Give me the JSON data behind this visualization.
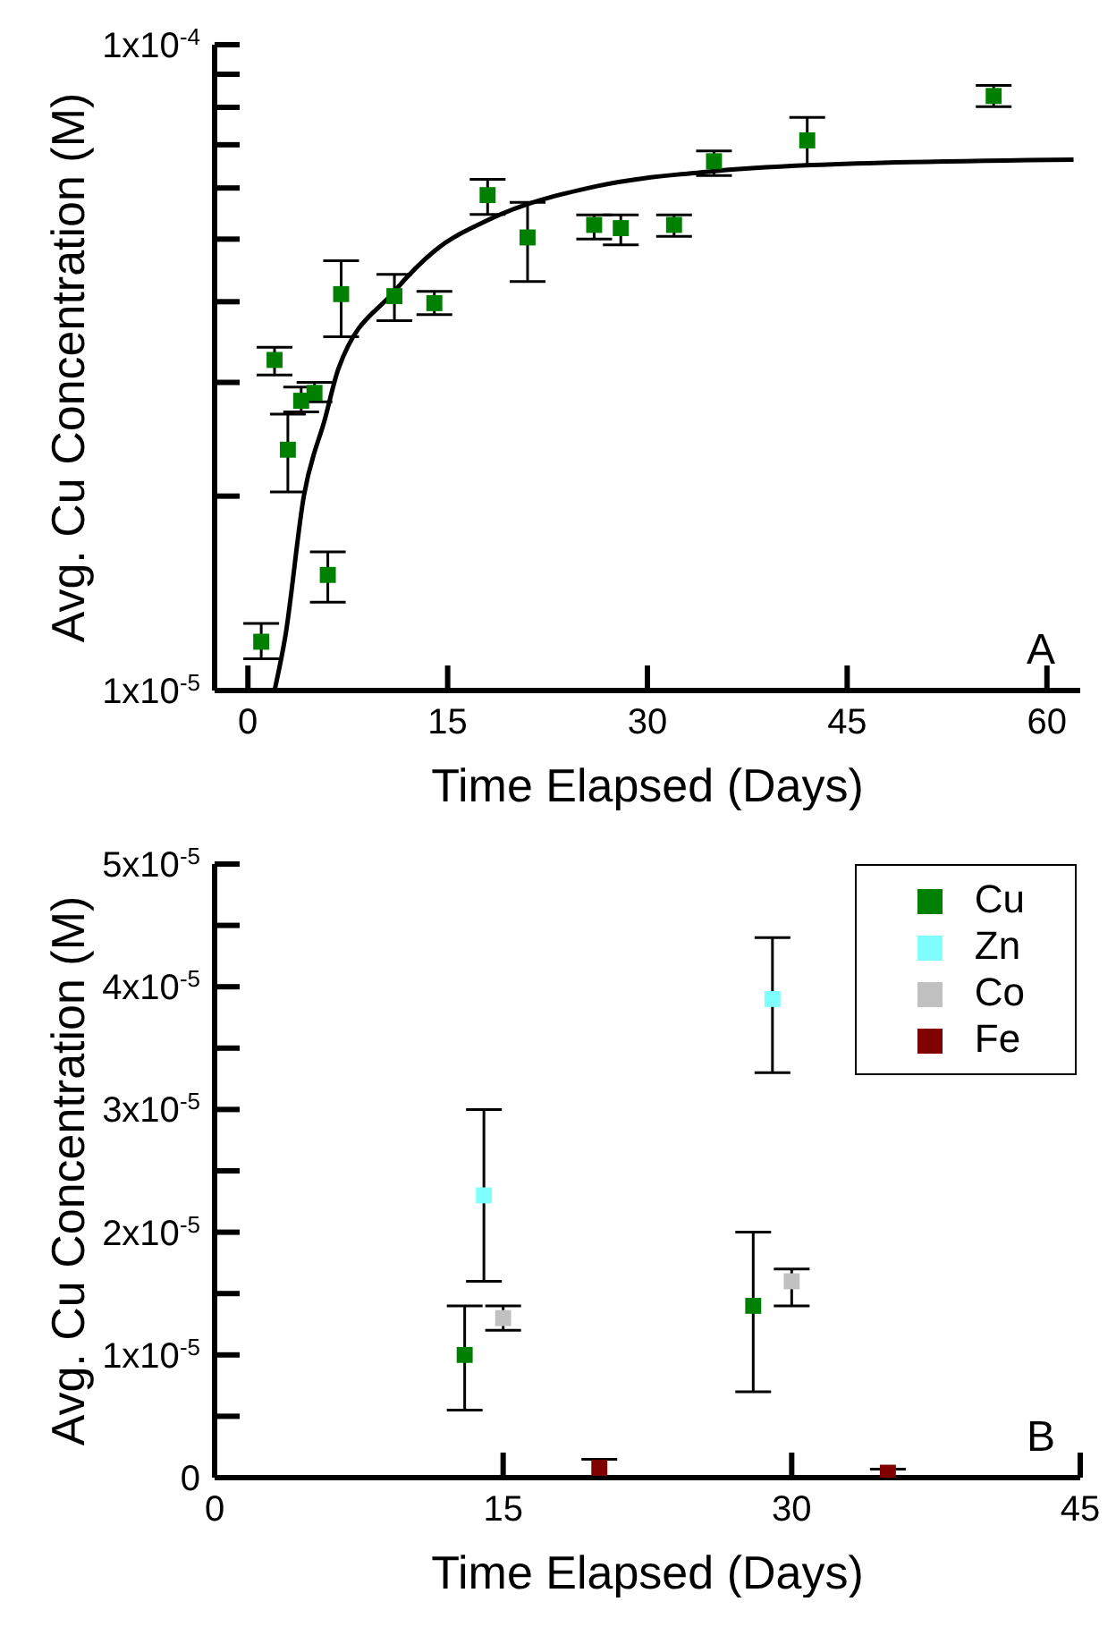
{
  "chart_data": [
    {
      "type": "scatter",
      "xlabel": "Time Elapsed (Days)",
      "ylabel": "Avg. Cu Concentration (M)",
      "log": "y",
      "xlim": [
        -2.5,
        62.5
      ],
      "xticks": [
        0,
        15,
        30,
        45,
        60
      ],
      "ylim": [
        1e-05,
        0.0001
      ],
      "yticks": [
        {
          "value": 1e-05,
          "label": "1x10$^{-5}$"
        },
        {
          "value": 2e-05,
          "label": null
        },
        {
          "value": 3e-05,
          "label": null
        },
        {
          "value": 4e-05,
          "label": null
        },
        {
          "value": 5e-05,
          "label": null
        },
        {
          "value": 6e-05,
          "label": null
        },
        {
          "value": 7e-05,
          "label": null
        },
        {
          "value": 8e-05,
          "label": null
        },
        {
          "value": 9e-05,
          "label": null
        },
        {
          "value": 0.0001,
          "label": "1x10$^{-4}$"
        }
      ],
      "legend": false,
      "marker": "square",
      "annotations": [
        "A"
      ],
      "series": [
        {
          "color": "#008000",
          "x": [
            1,
            2,
            3,
            4,
            5,
            6,
            7,
            11,
            14,
            18,
            21,
            26,
            28,
            32,
            35,
            42,
            56
          ],
          "values": [
            1.19e-05,
            3.25e-05,
            2.36e-05,
            2.81e-05,
            2.89e-05,
            1.51e-05,
            4.11e-05,
            4.08e-05,
            3.98e-05,
            5.85e-05,
            5.03e-05,
            5.26e-05,
            5.2e-05,
            5.26e-05,
            6.6e-05,
            7.11e-05,
            8.33e-05
          ],
          "errors": [
            [
              1.12e-05,
              1.27e-05
            ],
            [
              3.08e-05,
              3.4e-05
            ],
            [
              2.03e-05,
              2.68e-05
            ],
            [
              2.7e-05,
              2.95e-05
            ],
            [
              2.8e-05,
              3e-05
            ],
            [
              1.37e-05,
              1.64e-05
            ],
            [
              3.53e-05,
              4.63e-05
            ],
            [
              3.74e-05,
              4.41e-05
            ],
            [
              3.82e-05,
              4.15e-05
            ],
            [
              5.46e-05,
              6.19e-05
            ],
            [
              4.3e-05,
              5.7e-05
            ],
            [
              5e-05,
              5.45e-05
            ],
            [
              4.9e-05,
              5.45e-05
            ],
            [
              5.05e-05,
              5.45e-05
            ],
            [
              6.27e-05,
              6.85e-05
            ],
            [
              6.51e-05,
              7.72e-05
            ],
            [
              8.02e-05,
              8.65e-05
            ]
          ]
        },
        {
          "type": "line",
          "color": "#000000",
          "marker": "none",
          "line_style": "solid",
          "x": [
            2,
            2.8,
            4.2,
            5.8,
            6.8,
            10.9,
            14.1,
            18.1,
            26.2,
            34.2,
            42.3,
            62
          ],
          "values": [
            1e-05,
            1.21e-05,
            2e-05,
            2.64e-05,
            3.15e-05,
            4.13e-05,
            4.81e-05,
            5.36e-05,
            6.04e-05,
            6.35e-05,
            6.51e-05,
            6.64e-05
          ]
        }
      ]
    },
    {
      "type": "scatter",
      "xlabel": "Time Elapsed (Days)",
      "ylabel": "Avg. Cu Concentration (M)",
      "xlim": [
        0,
        45
      ],
      "xticks": [
        0,
        15,
        30,
        45
      ],
      "ylim": [
        0,
        5e-05
      ],
      "yticks": [
        0,
        {
          "value": 5e-06,
          "label": null
        },
        {
          "value": 1e-05,
          "label": "1x10$^{-5}$"
        },
        {
          "value": 1.5e-05,
          "label": null
        },
        {
          "value": 2e-05,
          "label": "2x10$^{-5}$"
        },
        {
          "value": 2.5e-05,
          "label": null
        },
        {
          "value": 3e-05,
          "label": "3x10$^{-5}$"
        },
        {
          "value": 3.5e-05,
          "label": null
        },
        {
          "value": 4e-05,
          "label": "4x10$^{-5}$"
        },
        {
          "value": 4.5e-05,
          "label": null
        },
        {
          "value": 5e-05,
          "label": "5x10$^{-5}$"
        }
      ],
      "legend": "top right",
      "marker": "square",
      "annotations": [
        "B"
      ],
      "series": [
        {
          "name": "Cu",
          "color": "#008000",
          "x": [
            13,
            28
          ],
          "values": [
            1e-05,
            1.4e-05
          ],
          "errors": [
            [
              5.5e-06,
              1.4e-05
            ],
            [
              7e-06,
              2e-05
            ]
          ]
        },
        {
          "name": "Zn",
          "color": "#80ffff",
          "x": [
            14,
            29
          ],
          "values": [
            2.3e-05,
            3.9e-05
          ],
          "errors": [
            [
              1.6e-05,
              3e-05
            ],
            [
              3.3e-05,
              4.4e-05
            ]
          ]
        },
        {
          "name": "Co",
          "color": "#c0c0c0",
          "x": [
            15,
            30
          ],
          "values": [
            1.3e-05,
            1.6e-05
          ],
          "errors": [
            [
              1.2e-05,
              1.4e-05
            ],
            [
              1.4e-05,
              1.7e-05
            ]
          ]
        },
        {
          "name": "Fe",
          "color": "#800000",
          "x": [
            20,
            35
          ],
          "values": [
            8e-07,
            4e-07
          ],
          "errors": [
            [
              1e-07,
              1.5e-06
            ],
            [
              1e-07,
              7e-07
            ]
          ]
        }
      ]
    }
  ]
}
